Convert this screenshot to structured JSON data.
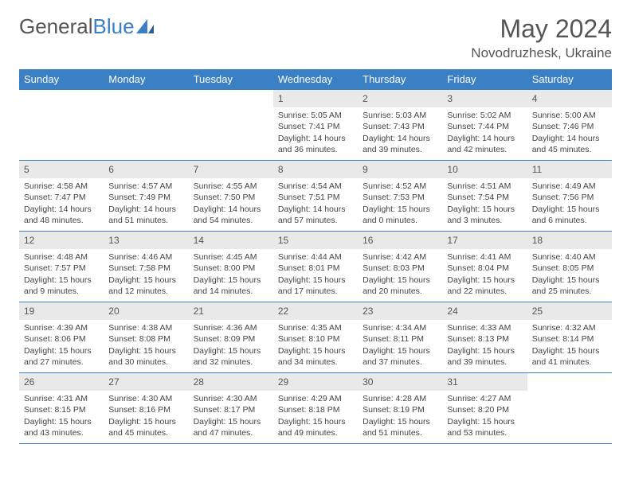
{
  "brand": {
    "text1": "General",
    "text2": "Blue"
  },
  "title": "May 2024",
  "location": "Novodruzhesk, Ukraine",
  "colors": {
    "header_bg": "#3b7fc4",
    "header_text": "#ffffff",
    "daynum_bg": "#e9e9e9",
    "border": "#3b7fc4",
    "text": "#444444",
    "title_text": "#555555"
  },
  "dow": [
    "Sunday",
    "Monday",
    "Tuesday",
    "Wednesday",
    "Thursday",
    "Friday",
    "Saturday"
  ],
  "weeks": [
    [
      {
        "n": "",
        "sr": "",
        "ss": "",
        "dl": ""
      },
      {
        "n": "",
        "sr": "",
        "ss": "",
        "dl": ""
      },
      {
        "n": "",
        "sr": "",
        "ss": "",
        "dl": ""
      },
      {
        "n": "1",
        "sr": "Sunrise: 5:05 AM",
        "ss": "Sunset: 7:41 PM",
        "dl": "Daylight: 14 hours and 36 minutes."
      },
      {
        "n": "2",
        "sr": "Sunrise: 5:03 AM",
        "ss": "Sunset: 7:43 PM",
        "dl": "Daylight: 14 hours and 39 minutes."
      },
      {
        "n": "3",
        "sr": "Sunrise: 5:02 AM",
        "ss": "Sunset: 7:44 PM",
        "dl": "Daylight: 14 hours and 42 minutes."
      },
      {
        "n": "4",
        "sr": "Sunrise: 5:00 AM",
        "ss": "Sunset: 7:46 PM",
        "dl": "Daylight: 14 hours and 45 minutes."
      }
    ],
    [
      {
        "n": "5",
        "sr": "Sunrise: 4:58 AM",
        "ss": "Sunset: 7:47 PM",
        "dl": "Daylight: 14 hours and 48 minutes."
      },
      {
        "n": "6",
        "sr": "Sunrise: 4:57 AM",
        "ss": "Sunset: 7:49 PM",
        "dl": "Daylight: 14 hours and 51 minutes."
      },
      {
        "n": "7",
        "sr": "Sunrise: 4:55 AM",
        "ss": "Sunset: 7:50 PM",
        "dl": "Daylight: 14 hours and 54 minutes."
      },
      {
        "n": "8",
        "sr": "Sunrise: 4:54 AM",
        "ss": "Sunset: 7:51 PM",
        "dl": "Daylight: 14 hours and 57 minutes."
      },
      {
        "n": "9",
        "sr": "Sunrise: 4:52 AM",
        "ss": "Sunset: 7:53 PM",
        "dl": "Daylight: 15 hours and 0 minutes."
      },
      {
        "n": "10",
        "sr": "Sunrise: 4:51 AM",
        "ss": "Sunset: 7:54 PM",
        "dl": "Daylight: 15 hours and 3 minutes."
      },
      {
        "n": "11",
        "sr": "Sunrise: 4:49 AM",
        "ss": "Sunset: 7:56 PM",
        "dl": "Daylight: 15 hours and 6 minutes."
      }
    ],
    [
      {
        "n": "12",
        "sr": "Sunrise: 4:48 AM",
        "ss": "Sunset: 7:57 PM",
        "dl": "Daylight: 15 hours and 9 minutes."
      },
      {
        "n": "13",
        "sr": "Sunrise: 4:46 AM",
        "ss": "Sunset: 7:58 PM",
        "dl": "Daylight: 15 hours and 12 minutes."
      },
      {
        "n": "14",
        "sr": "Sunrise: 4:45 AM",
        "ss": "Sunset: 8:00 PM",
        "dl": "Daylight: 15 hours and 14 minutes."
      },
      {
        "n": "15",
        "sr": "Sunrise: 4:44 AM",
        "ss": "Sunset: 8:01 PM",
        "dl": "Daylight: 15 hours and 17 minutes."
      },
      {
        "n": "16",
        "sr": "Sunrise: 4:42 AM",
        "ss": "Sunset: 8:03 PM",
        "dl": "Daylight: 15 hours and 20 minutes."
      },
      {
        "n": "17",
        "sr": "Sunrise: 4:41 AM",
        "ss": "Sunset: 8:04 PM",
        "dl": "Daylight: 15 hours and 22 minutes."
      },
      {
        "n": "18",
        "sr": "Sunrise: 4:40 AM",
        "ss": "Sunset: 8:05 PM",
        "dl": "Daylight: 15 hours and 25 minutes."
      }
    ],
    [
      {
        "n": "19",
        "sr": "Sunrise: 4:39 AM",
        "ss": "Sunset: 8:06 PM",
        "dl": "Daylight: 15 hours and 27 minutes."
      },
      {
        "n": "20",
        "sr": "Sunrise: 4:38 AM",
        "ss": "Sunset: 8:08 PM",
        "dl": "Daylight: 15 hours and 30 minutes."
      },
      {
        "n": "21",
        "sr": "Sunrise: 4:36 AM",
        "ss": "Sunset: 8:09 PM",
        "dl": "Daylight: 15 hours and 32 minutes."
      },
      {
        "n": "22",
        "sr": "Sunrise: 4:35 AM",
        "ss": "Sunset: 8:10 PM",
        "dl": "Daylight: 15 hours and 34 minutes."
      },
      {
        "n": "23",
        "sr": "Sunrise: 4:34 AM",
        "ss": "Sunset: 8:11 PM",
        "dl": "Daylight: 15 hours and 37 minutes."
      },
      {
        "n": "24",
        "sr": "Sunrise: 4:33 AM",
        "ss": "Sunset: 8:13 PM",
        "dl": "Daylight: 15 hours and 39 minutes."
      },
      {
        "n": "25",
        "sr": "Sunrise: 4:32 AM",
        "ss": "Sunset: 8:14 PM",
        "dl": "Daylight: 15 hours and 41 minutes."
      }
    ],
    [
      {
        "n": "26",
        "sr": "Sunrise: 4:31 AM",
        "ss": "Sunset: 8:15 PM",
        "dl": "Daylight: 15 hours and 43 minutes."
      },
      {
        "n": "27",
        "sr": "Sunrise: 4:30 AM",
        "ss": "Sunset: 8:16 PM",
        "dl": "Daylight: 15 hours and 45 minutes."
      },
      {
        "n": "28",
        "sr": "Sunrise: 4:30 AM",
        "ss": "Sunset: 8:17 PM",
        "dl": "Daylight: 15 hours and 47 minutes."
      },
      {
        "n": "29",
        "sr": "Sunrise: 4:29 AM",
        "ss": "Sunset: 8:18 PM",
        "dl": "Daylight: 15 hours and 49 minutes."
      },
      {
        "n": "30",
        "sr": "Sunrise: 4:28 AM",
        "ss": "Sunset: 8:19 PM",
        "dl": "Daylight: 15 hours and 51 minutes."
      },
      {
        "n": "31",
        "sr": "Sunrise: 4:27 AM",
        "ss": "Sunset: 8:20 PM",
        "dl": "Daylight: 15 hours and 53 minutes."
      },
      {
        "n": "",
        "sr": "",
        "ss": "",
        "dl": ""
      }
    ]
  ]
}
